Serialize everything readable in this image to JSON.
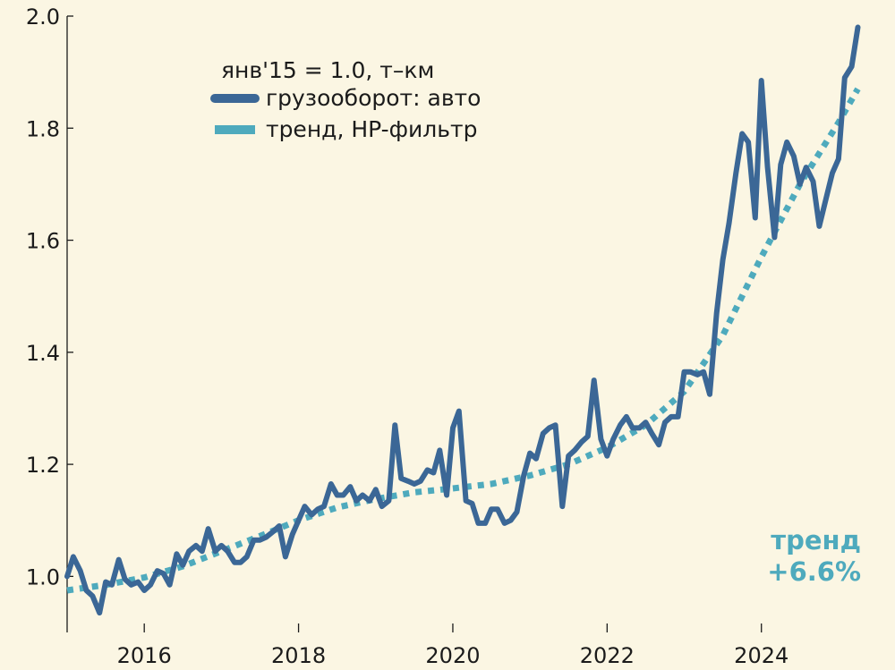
{
  "chart_data": {
    "type": "line",
    "legend": {
      "header": "янв'15 = 1.0, т–км",
      "placement": "top-left"
    },
    "annotation": {
      "line1": "тренд",
      "line2": "+6.6%"
    },
    "colors": {
      "background": "#fbf6e3",
      "actual": "#3b6796",
      "trend": "#4eaabd",
      "axis": "#1b1b1b"
    },
    "grid": false,
    "xlim": [
      2015.0,
      2025.5
    ],
    "ylim": [
      0.9,
      2.0
    ],
    "x_ticks": [
      {
        "value": 2016,
        "label": "2016"
      },
      {
        "value": 2018,
        "label": "2018"
      },
      {
        "value": 2020,
        "label": "2020"
      },
      {
        "value": 2022,
        "label": "2022"
      },
      {
        "value": 2024,
        "label": "2024"
      }
    ],
    "y_ticks": [
      {
        "value": 1.0,
        "label": "1.0"
      },
      {
        "value": 1.2,
        "label": "1.2"
      },
      {
        "value": 1.4,
        "label": "1.4"
      },
      {
        "value": 1.6,
        "label": "1.6"
      },
      {
        "value": 1.8,
        "label": "1.8"
      },
      {
        "value": 2.0,
        "label": "2.0"
      }
    ],
    "series": [
      {
        "name": "грузооборот: авто",
        "style": "solid",
        "x": [
          2015.0,
          2015.08,
          2015.17,
          2015.25,
          2015.33,
          2015.42,
          2015.5,
          2015.58,
          2015.67,
          2015.75,
          2015.83,
          2015.92,
          2016.0,
          2016.08,
          2016.17,
          2016.25,
          2016.33,
          2016.42,
          2016.5,
          2016.58,
          2016.67,
          2016.75,
          2016.83,
          2016.92,
          2017.0,
          2017.08,
          2017.17,
          2017.25,
          2017.33,
          2017.42,
          2017.5,
          2017.58,
          2017.67,
          2017.75,
          2017.83,
          2017.92,
          2018.0,
          2018.08,
          2018.17,
          2018.25,
          2018.33,
          2018.42,
          2018.5,
          2018.58,
          2018.67,
          2018.75,
          2018.83,
          2018.92,
          2019.0,
          2019.08,
          2019.17,
          2019.25,
          2019.33,
          2019.42,
          2019.5,
          2019.58,
          2019.67,
          2019.75,
          2019.83,
          2019.92,
          2020.0,
          2020.08,
          2020.17,
          2020.25,
          2020.33,
          2020.42,
          2020.5,
          2020.58,
          2020.67,
          2020.75,
          2020.83,
          2020.92,
          2021.0,
          2021.08,
          2021.17,
          2021.25,
          2021.33,
          2021.42,
          2021.5,
          2021.58,
          2021.67,
          2021.75,
          2021.83,
          2021.92,
          2022.0,
          2022.08,
          2022.17,
          2022.25,
          2022.33,
          2022.42,
          2022.5,
          2022.58,
          2022.67,
          2022.75,
          2022.83,
          2022.92,
          2023.0,
          2023.08,
          2023.17,
          2023.25,
          2023.33,
          2023.42,
          2023.5,
          2023.58,
          2023.67,
          2023.75,
          2023.83,
          2023.92,
          2024.0,
          2024.08,
          2024.17,
          2024.25,
          2024.33,
          2024.42,
          2024.5,
          2024.58,
          2024.67,
          2024.75,
          2024.83,
          2024.92,
          2025.0,
          2025.08,
          2025.17,
          2025.25
        ],
        "values": [
          1.0,
          1.035,
          1.01,
          0.975,
          0.965,
          0.935,
          0.99,
          0.985,
          1.03,
          0.995,
          0.985,
          0.99,
          0.975,
          0.985,
          1.01,
          1.005,
          0.985,
          1.04,
          1.02,
          1.045,
          1.055,
          1.045,
          1.085,
          1.045,
          1.055,
          1.045,
          1.025,
          1.025,
          1.035,
          1.065,
          1.065,
          1.07,
          1.08,
          1.09,
          1.035,
          1.075,
          1.1,
          1.125,
          1.11,
          1.12,
          1.125,
          1.165,
          1.145,
          1.145,
          1.16,
          1.135,
          1.145,
          1.135,
          1.155,
          1.125,
          1.135,
          1.27,
          1.175,
          1.17,
          1.165,
          1.17,
          1.19,
          1.185,
          1.225,
          1.145,
          1.265,
          1.295,
          1.135,
          1.13,
          1.095,
          1.095,
          1.12,
          1.12,
          1.095,
          1.1,
          1.115,
          1.18,
          1.22,
          1.21,
          1.255,
          1.265,
          1.27,
          1.125,
          1.215,
          1.225,
          1.24,
          1.25,
          1.35,
          1.245,
          1.215,
          1.245,
          1.27,
          1.285,
          1.265,
          1.265,
          1.275,
          1.255,
          1.235,
          1.275,
          1.285,
          1.285,
          1.365,
          1.365,
          1.36,
          1.365,
          1.325,
          1.47,
          1.565,
          1.63,
          1.72,
          1.79,
          1.775,
          1.64,
          1.885,
          1.73,
          1.605,
          1.735,
          1.775,
          1.75,
          1.7,
          1.73,
          1.705,
          1.625,
          1.67,
          1.72,
          1.745,
          1.89,
          1.91,
          1.98
        ]
      },
      {
        "name": "тренд, HP-фильтр",
        "style": "dotted",
        "x": [
          2015.0,
          2015.5,
          2016.0,
          2016.5,
          2017.0,
          2017.5,
          2018.0,
          2018.5,
          2019.0,
          2019.5,
          2020.0,
          2020.5,
          2021.0,
          2021.5,
          2022.0,
          2022.5,
          2023.0,
          2023.5,
          2024.0,
          2024.5,
          2025.0,
          2025.25
        ],
        "values": [
          0.975,
          0.985,
          0.998,
          1.018,
          1.045,
          1.072,
          1.1,
          1.123,
          1.138,
          1.15,
          1.157,
          1.165,
          1.18,
          1.2,
          1.23,
          1.27,
          1.33,
          1.43,
          1.57,
          1.7,
          1.81,
          1.87
        ]
      }
    ]
  }
}
